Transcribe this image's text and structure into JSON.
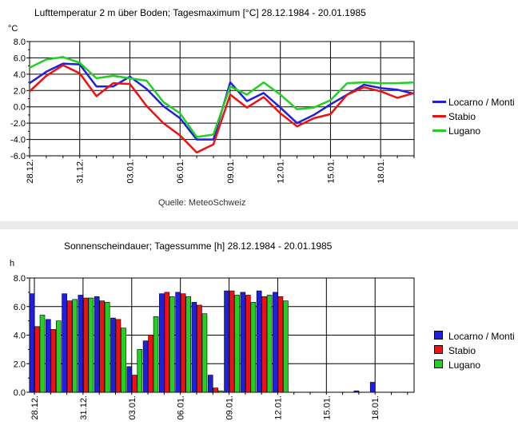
{
  "chart_data": [
    {
      "type": "line",
      "title": "Lufttemperatur 2 m über Boden; Tagesmaximum [°C]  28.12.1984 - 20.01.1985",
      "ylabel": "°C",
      "source": "Quelle: MeteoSchweiz",
      "ylim": [
        -6,
        8
      ],
      "y_ticks": [
        "8.0",
        "6.0",
        "4.0",
        "2.0",
        "0.0",
        "-2.0",
        "-4.0",
        "-6.0"
      ],
      "x": [
        "28.12.",
        "29.12.",
        "30.12.",
        "31.12.",
        "01.01.",
        "02.01.",
        "03.01.",
        "04.01.",
        "05.01.",
        "06.01.",
        "07.01.",
        "08.01.",
        "09.01.",
        "10.01.",
        "11.01.",
        "12.01.",
        "13.01.",
        "14.01.",
        "15.01.",
        "16.01.",
        "17.01.",
        "18.01.",
        "19.01.",
        "20.01."
      ],
      "x_tick_labels": [
        "28.12.",
        "31.12.",
        "03.01.",
        "06.01.",
        "09.01.",
        "12.01.",
        "15.01.",
        "18.01."
      ],
      "grid": true,
      "legend_position": "right",
      "series": [
        {
          "name": "Locarno / Monti",
          "color": "#1f1fe0",
          "values": [
            2.9,
            4.3,
            5.3,
            5.2,
            2.5,
            2.5,
            3.7,
            2.2,
            0.1,
            -1.4,
            -4.0,
            -4.0,
            3.0,
            0.7,
            1.7,
            -0.1,
            -2.0,
            -1.0,
            0.3,
            1.5,
            2.7,
            2.3,
            2.1,
            1.6
          ]
        },
        {
          "name": "Stabio",
          "color": "#f01010",
          "values": [
            1.9,
            3.8,
            5.1,
            4.1,
            1.3,
            2.9,
            2.8,
            0.1,
            -2.0,
            -3.5,
            -5.6,
            -4.6,
            1.5,
            -0.1,
            1.2,
            -0.8,
            -2.4,
            -1.4,
            -0.9,
            1.5,
            2.4,
            1.9,
            1.1,
            1.7
          ]
        },
        {
          "name": "Lugano",
          "color": "#22d022",
          "values": [
            4.8,
            5.8,
            6.1,
            5.4,
            3.5,
            3.8,
            3.5,
            3.2,
            0.6,
            -0.8,
            -3.7,
            -3.4,
            2.5,
            1.5,
            3.0,
            1.5,
            -0.3,
            -0.1,
            0.8,
            2.9,
            3.0,
            2.9,
            2.9,
            3.0
          ]
        }
      ]
    },
    {
      "type": "bar",
      "title": "Sonnenscheindauer; Tagessumme [h]  28.12.1984 - 20.01.1985",
      "ylabel": "h",
      "ylim": [
        0,
        8
      ],
      "y_ticks": [
        "8.0",
        "6.0",
        "4.0",
        "2.0",
        "0.0"
      ],
      "categories": [
        "28.12.",
        "29.12.",
        "30.12.",
        "31.12.",
        "01.01.",
        "02.01.",
        "03.01.",
        "04.01.",
        "05.01.",
        "06.01.",
        "07.01.",
        "08.01.",
        "09.01.",
        "10.01.",
        "11.01.",
        "12.01.",
        "13.01.",
        "14.01.",
        "15.01.",
        "16.01.",
        "17.01.",
        "18.01.",
        "19.01.",
        "20.01."
      ],
      "x_tick_labels": [
        "28.12.",
        "31.12.",
        "03.01.",
        "06.01.",
        "09.01.",
        "12.01.",
        "15.01.",
        "18.01."
      ],
      "grid": true,
      "legend_position": "right",
      "series": [
        {
          "name": "Locarno / Monti",
          "color": "#1f1fe0",
          "values": [
            6.9,
            5.1,
            6.9,
            6.8,
            6.7,
            5.2,
            1.8,
            3.6,
            6.9,
            7.0,
            6.3,
            1.2,
            7.1,
            7.0,
            7.1,
            7.0,
            0,
            0,
            0,
            0,
            0.1,
            0.7,
            0,
            0
          ]
        },
        {
          "name": "Stabio",
          "color": "#f01010",
          "values": [
            4.6,
            4.4,
            6.4,
            6.6,
            6.4,
            5.1,
            1.2,
            4.0,
            7.0,
            6.9,
            6.1,
            0.3,
            7.1,
            6.8,
            6.7,
            6.7,
            0,
            0,
            0,
            0,
            0,
            0,
            0,
            0
          ]
        },
        {
          "name": "Lugano",
          "color": "#22d022",
          "values": [
            5.4,
            5.0,
            6.5,
            6.6,
            6.3,
            4.5,
            3.0,
            5.3,
            6.7,
            6.7,
            5.5,
            0.1,
            6.8,
            6.3,
            6.8,
            6.4,
            0,
            0,
            0,
            0,
            0,
            0,
            0,
            0
          ]
        }
      ]
    }
  ]
}
